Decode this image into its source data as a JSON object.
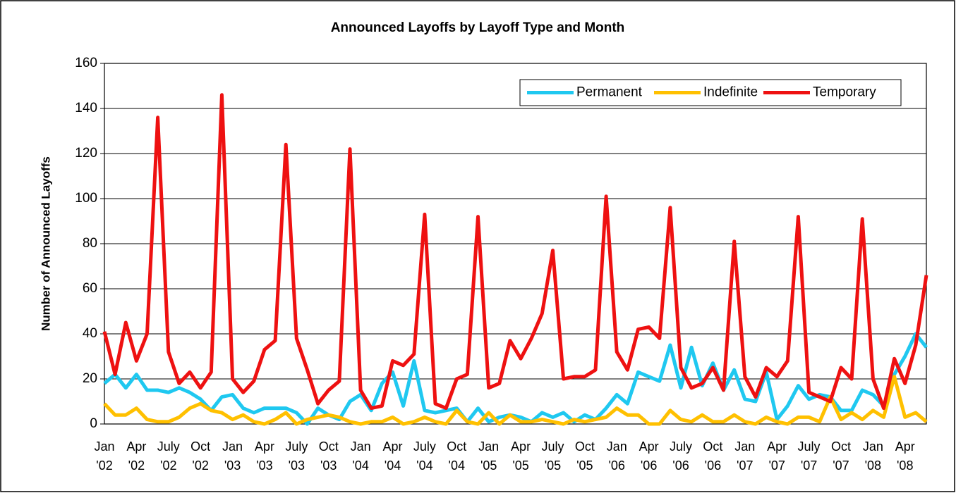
{
  "chart_data": {
    "type": "line",
    "title": "Announced Layoffs by Layoff Type and Month",
    "y_label": "Number of Announced Layoffs",
    "categories": [
      "Jan '02",
      null,
      null,
      "Apr '02",
      null,
      null,
      "July '02",
      null,
      null,
      "Oct '02",
      null,
      null,
      "Jan '03",
      null,
      null,
      "Apr '03",
      null,
      null,
      "July '03",
      null,
      null,
      "Oct '03",
      null,
      null,
      "Jan '04",
      null,
      null,
      "Apr '04",
      null,
      null,
      "July '04",
      null,
      null,
      "Oct '04",
      null,
      null,
      "Jan '05",
      null,
      null,
      "Apr '05",
      null,
      null,
      "July '05",
      null,
      null,
      "Oct '05",
      null,
      null,
      "Jan '06",
      null,
      null,
      "Apr '06",
      null,
      null,
      "July '06",
      null,
      null,
      "Oct '06",
      null,
      null,
      "Jan '07",
      null,
      null,
      "Apr '07",
      null,
      null,
      "July '07",
      null,
      null,
      "Oct '07",
      null,
      null,
      "Jan '08",
      null,
      null,
      "Apr '08",
      null,
      null
    ],
    "series": [
      {
        "name": "Permanent",
        "color": "#1fc8f0",
        "values": [
          18,
          22,
          16,
          22,
          15,
          15,
          14,
          16,
          14,
          11,
          6,
          12,
          13,
          7,
          5,
          7,
          7,
          7,
          5,
          0,
          7,
          4,
          2,
          10,
          13,
          6,
          18,
          23,
          8,
          28,
          6,
          5,
          6,
          7,
          1,
          7,
          1,
          3,
          4,
          3,
          1,
          5,
          3,
          5,
          1,
          4,
          2,
          7,
          13,
          9,
          23,
          21,
          19,
          35,
          16,
          34,
          17,
          27,
          15,
          24,
          11,
          10,
          23,
          2,
          8,
          17,
          11,
          13,
          12,
          6,
          6,
          15,
          13,
          8,
          22,
          30,
          40,
          34
        ]
      },
      {
        "name": "Indefinite",
        "color": "#ffc000",
        "values": [
          9,
          4,
          4,
          7,
          2,
          1,
          1,
          3,
          7,
          9,
          6,
          5,
          2,
          4,
          1,
          0,
          2,
          5,
          0,
          2,
          3,
          4,
          3,
          1,
          0,
          1,
          1,
          3,
          0,
          1,
          3,
          1,
          0,
          6,
          1,
          0,
          5,
          0,
          4,
          1,
          1,
          2,
          1,
          0,
          2,
          1,
          2,
          3,
          7,
          4,
          4,
          0,
          0,
          6,
          2,
          1,
          4,
          1,
          1,
          4,
          1,
          0,
          3,
          1,
          0,
          3,
          3,
          1,
          12,
          2,
          5,
          2,
          6,
          3,
          21,
          3,
          5,
          1
        ]
      },
      {
        "name": "Temporary",
        "color": "#ee1111",
        "values": [
          41,
          22,
          45,
          28,
          40,
          136,
          32,
          18,
          23,
          16,
          23,
          146,
          20,
          14,
          19,
          33,
          37,
          124,
          38,
          24,
          9,
          15,
          19,
          122,
          15,
          7,
          8,
          28,
          26,
          31,
          93,
          9,
          7,
          20,
          22,
          92,
          16,
          18,
          37,
          29,
          38,
          49,
          77,
          20,
          21,
          21,
          24,
          101,
          32,
          24,
          42,
          43,
          38,
          96,
          25,
          16,
          18,
          25,
          15,
          81,
          21,
          12,
          25,
          21,
          28,
          92,
          14,
          12,
          10,
          25,
          20,
          91,
          20,
          7,
          29,
          18,
          35,
          66
        ]
      }
    ],
    "ylim": [
      0,
      160
    ],
    "yticks": [
      0,
      20,
      40,
      60,
      80,
      100,
      120,
      140,
      160
    ],
    "grid": true,
    "legend": "upper right"
  }
}
